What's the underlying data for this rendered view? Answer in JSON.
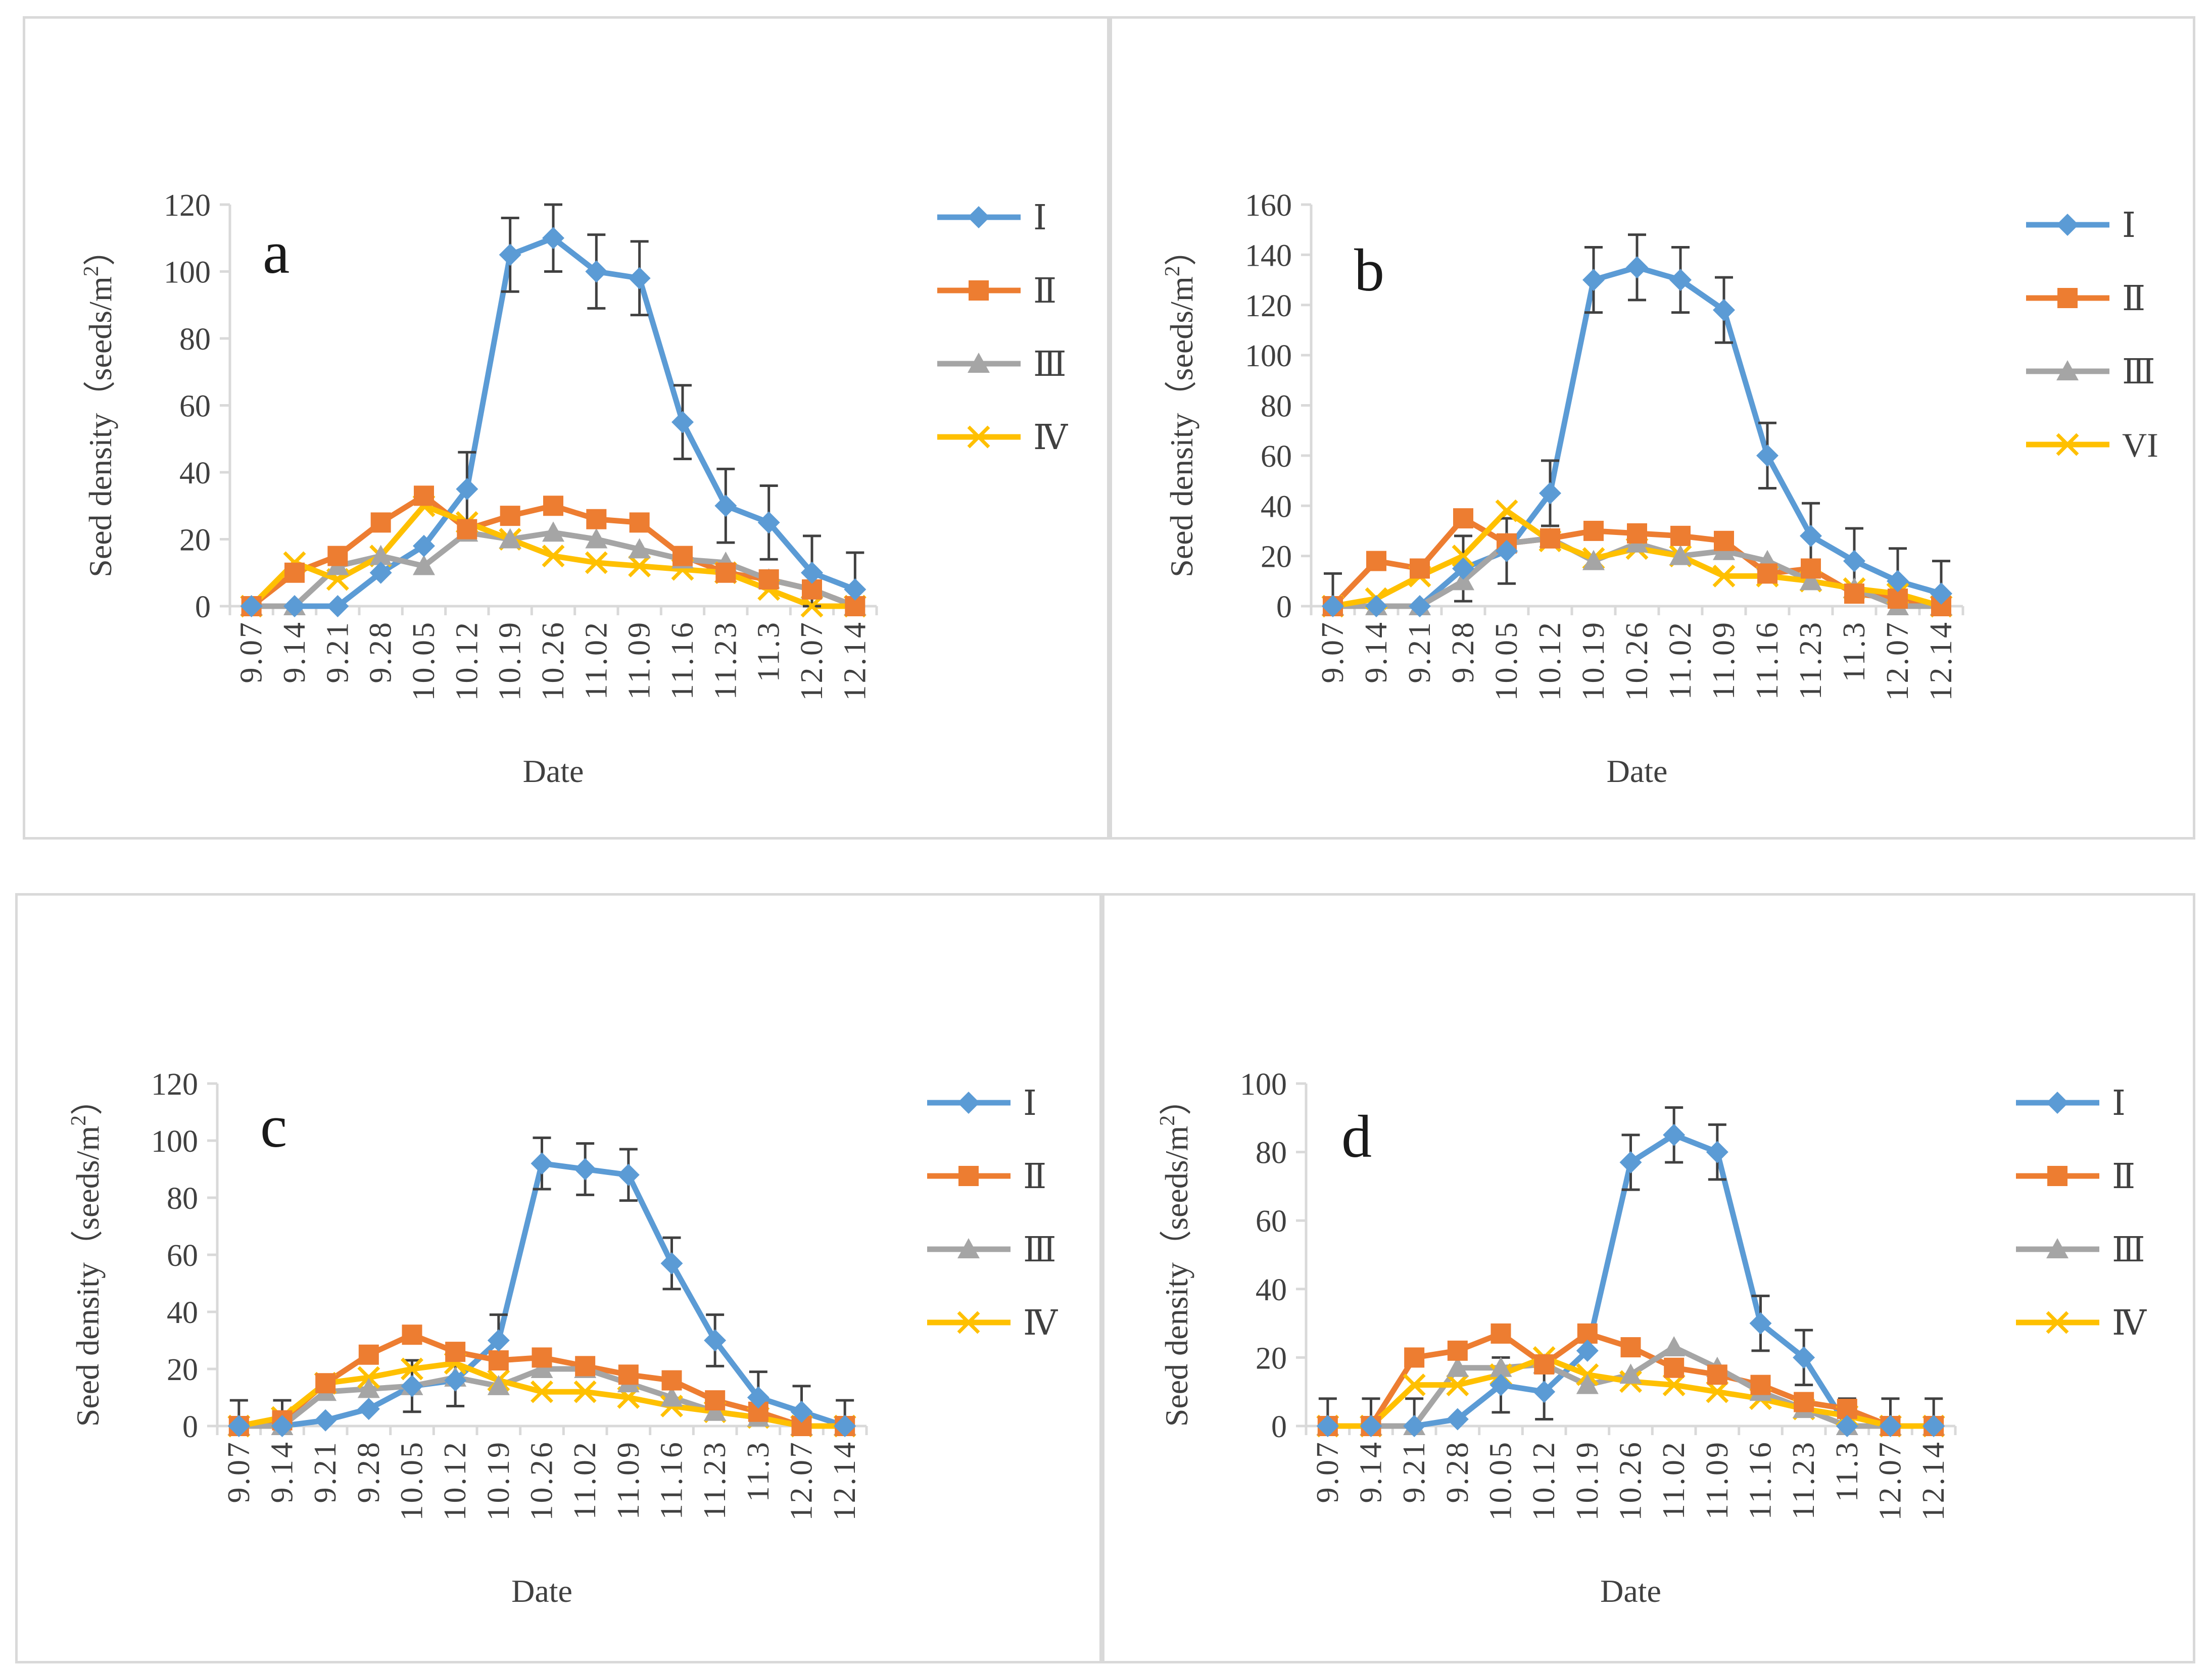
{
  "colors": {
    "series": [
      "#5b9bd5",
      "#ed7d31",
      "#a5a5a5",
      "#ffc000"
    ],
    "axis": "#d9d9d9",
    "error_bar": "#404040",
    "text": "#404040"
  },
  "chart_data": [
    {
      "type": "line",
      "panel_letter": "a",
      "xlabel": "Date",
      "ylabel_main": "Seed density（seeds/m",
      "ylabel_sup": "2",
      "ylabel_close": "）",
      "ylim": [
        0,
        120
      ],
      "yticks": [
        "0",
        "20",
        "40",
        "60",
        "80",
        "100",
        "120"
      ],
      "categories": [
        "9.07",
        "9.14",
        "9.21",
        "9.28",
        "10.05",
        "10.12",
        "10.19",
        "10.26",
        "11.02",
        "11.09",
        "11.16",
        "11.23",
        "11.3",
        "12.07",
        "12.14"
      ],
      "series": [
        {
          "name": "Ⅰ",
          "marker": "diamond",
          "values": [
            0,
            0,
            0,
            10,
            18,
            35,
            105,
            110,
            100,
            98,
            55,
            30,
            25,
            10,
            5
          ],
          "errors": [
            0,
            0,
            0,
            0,
            0,
            11,
            11,
            10,
            11,
            11,
            11,
            11,
            11,
            11,
            11
          ]
        },
        {
          "name": "Ⅱ",
          "marker": "square",
          "values": [
            0,
            10,
            15,
            25,
            33,
            23,
            27,
            30,
            26,
            25,
            15,
            10,
            8,
            5,
            0
          ],
          "errors": []
        },
        {
          "name": "Ⅲ",
          "marker": "triangle",
          "values": [
            0,
            0,
            12,
            15,
            12,
            22,
            20,
            22,
            20,
            17,
            14,
            13,
            8,
            5,
            0
          ],
          "errors": []
        },
        {
          "name": "Ⅳ",
          "marker": "x",
          "values": [
            0,
            13,
            8,
            15,
            30,
            25,
            20,
            15,
            13,
            12,
            11,
            10,
            5,
            0,
            0
          ],
          "errors": []
        }
      ]
    },
    {
      "type": "line",
      "panel_letter": "b",
      "xlabel": "Date",
      "ylabel_main": "Seed density（seeds/m",
      "ylabel_sup": "2",
      "ylabel_close": "）",
      "ylim": [
        0,
        160
      ],
      "yticks": [
        "0",
        "20",
        "40",
        "60",
        "80",
        "100",
        "120",
        "140",
        "160"
      ],
      "categories": [
        "9.07",
        "9.14",
        "9.21",
        "9.28",
        "10.05",
        "10.12",
        "10.19",
        "10.26",
        "11.02",
        "11.09",
        "11.16",
        "11.23",
        "11.3",
        "12.07",
        "12.14"
      ],
      "series": [
        {
          "name": "Ⅰ",
          "marker": "diamond",
          "values": [
            0,
            0,
            0,
            15,
            22,
            45,
            130,
            135,
            130,
            118,
            60,
            28,
            18,
            10,
            5
          ],
          "errors": [
            13,
            0,
            0,
            13,
            13,
            13,
            13,
            13,
            13,
            13,
            13,
            13,
            13,
            13,
            13
          ]
        },
        {
          "name": "Ⅱ",
          "marker": "square",
          "values": [
            0,
            18,
            15,
            35,
            25,
            27,
            30,
            29,
            28,
            26,
            13,
            15,
            5,
            3,
            0
          ],
          "errors": []
        },
        {
          "name": "Ⅲ",
          "marker": "triangle",
          "values": [
            0,
            0,
            0,
            10,
            25,
            27,
            18,
            25,
            20,
            22,
            18,
            10,
            7,
            0,
            0
          ],
          "errors": []
        },
        {
          "name": "VI",
          "marker": "x",
          "values": [
            0,
            3,
            12,
            20,
            38,
            26,
            19,
            23,
            20,
            12,
            12,
            10,
            7,
            5,
            0
          ],
          "errors": []
        }
      ]
    },
    {
      "type": "line",
      "panel_letter": "c",
      "xlabel": "Date",
      "ylabel_main": "Seed density（seeds/m",
      "ylabel_sup": "2",
      "ylabel_close": "）",
      "ylim": [
        0,
        120
      ],
      "yticks": [
        "0",
        "20",
        "40",
        "60",
        "80",
        "100",
        "120"
      ],
      "categories": [
        "9.07",
        "9.14",
        "9.21",
        "9.28",
        "10.05",
        "10.12",
        "10.19",
        "10.26",
        "11.02",
        "11.09",
        "11.16",
        "11.23",
        "11.3",
        "12.07",
        "12.14"
      ],
      "series": [
        {
          "name": "Ⅰ",
          "marker": "diamond",
          "values": [
            0,
            0,
            2,
            6,
            14,
            16,
            30,
            92,
            90,
            88,
            57,
            30,
            10,
            5,
            0
          ],
          "errors": [
            9,
            9,
            0,
            0,
            9,
            9,
            9,
            9,
            9,
            9,
            9,
            9,
            9,
            9,
            9
          ]
        },
        {
          "name": "Ⅱ",
          "marker": "square",
          "values": [
            0,
            2,
            15,
            25,
            32,
            26,
            23,
            24,
            21,
            18,
            16,
            9,
            5,
            0,
            0
          ],
          "errors": []
        },
        {
          "name": "Ⅲ",
          "marker": "triangle",
          "values": [
            0,
            0,
            12,
            13,
            14,
            17,
            14,
            20,
            20,
            15,
            10,
            5,
            3,
            0,
            0
          ],
          "errors": []
        },
        {
          "name": "Ⅳ",
          "marker": "x",
          "values": [
            0,
            3,
            15,
            17,
            20,
            22,
            16,
            12,
            12,
            10,
            7,
            5,
            3,
            0,
            0
          ],
          "errors": []
        }
      ]
    },
    {
      "type": "line",
      "panel_letter": "d",
      "xlabel": "Date",
      "ylabel_main": "Seed density（seeds/m",
      "ylabel_sup": "2",
      "ylabel_close": "）",
      "ylim": [
        0,
        100
      ],
      "yticks": [
        "0",
        "20",
        "40",
        "60",
        "80",
        "100"
      ],
      "categories": [
        "9.07",
        "9.14",
        "9.21",
        "9.28",
        "10.05",
        "10.12",
        "10.19",
        "10.26",
        "11.02",
        "11.09",
        "11.16",
        "11.23",
        "11.3",
        "12.07",
        "12.14"
      ],
      "series": [
        {
          "name": "Ⅰ",
          "marker": "diamond",
          "values": [
            0,
            0,
            0,
            2,
            12,
            10,
            22,
            77,
            85,
            80,
            30,
            20,
            0,
            0,
            0
          ],
          "errors": [
            8,
            8,
            8,
            0,
            8,
            8,
            0,
            8,
            8,
            8,
            8,
            8,
            8,
            8,
            8
          ]
        },
        {
          "name": "Ⅱ",
          "marker": "square",
          "values": [
            0,
            0,
            20,
            22,
            27,
            18,
            27,
            23,
            17,
            15,
            12,
            7,
            5,
            0,
            0
          ],
          "errors": []
        },
        {
          "name": "Ⅲ",
          "marker": "triangle",
          "values": [
            0,
            0,
            0,
            17,
            17,
            18,
            12,
            15,
            23,
            17,
            10,
            5,
            0,
            0,
            0
          ],
          "errors": []
        },
        {
          "name": "Ⅳ",
          "marker": "x",
          "values": [
            0,
            0,
            12,
            12,
            15,
            20,
            15,
            13,
            12,
            10,
            8,
            5,
            3,
            0,
            0
          ],
          "errors": []
        }
      ]
    }
  ]
}
